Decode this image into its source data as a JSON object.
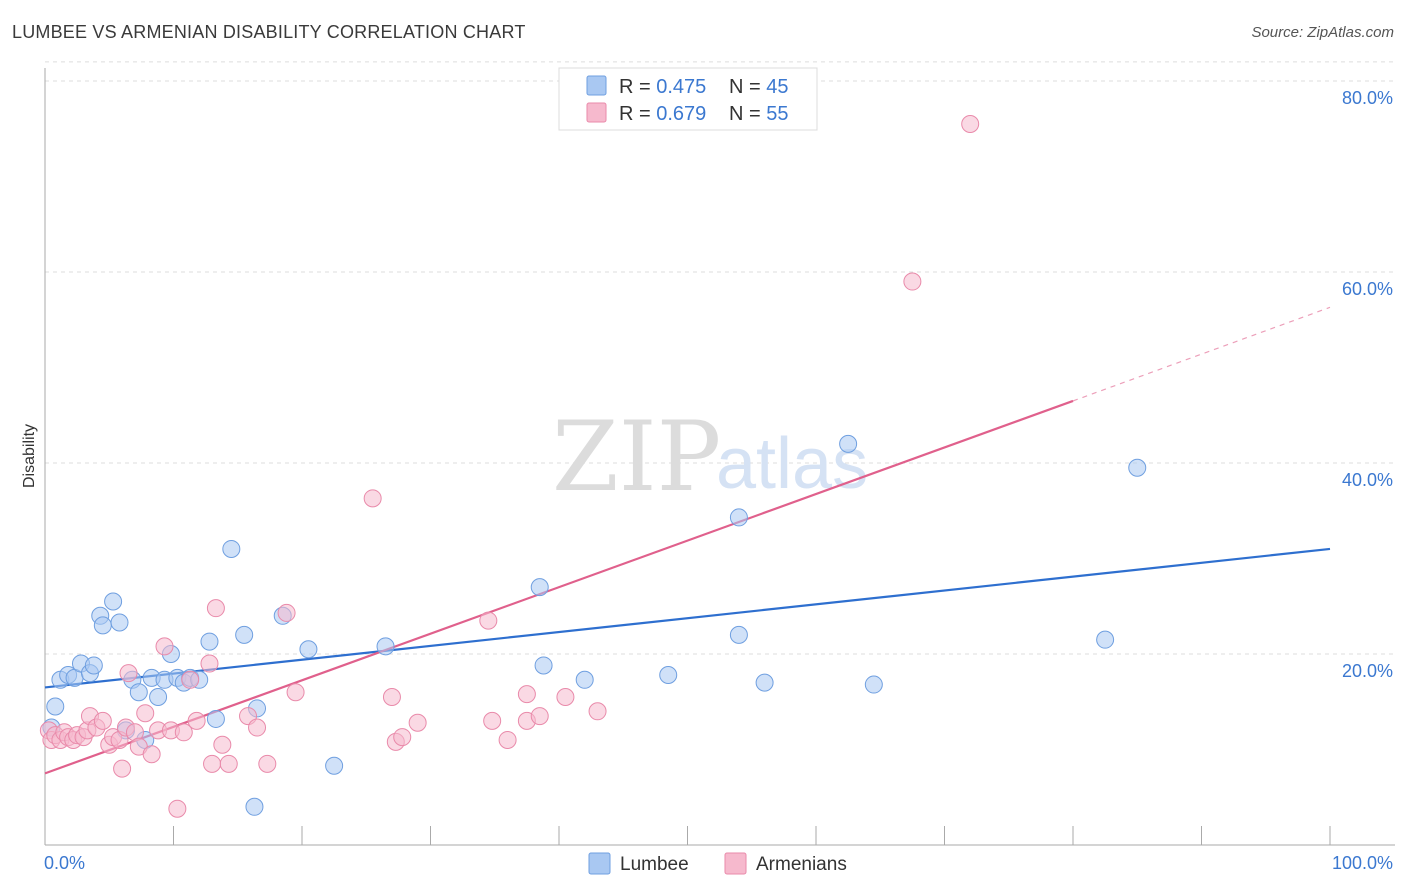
{
  "title": "LUMBEE VS ARMENIAN DISABILITY CORRELATION CHART",
  "source": "Source: ZipAtlas.com",
  "colors": {
    "lumbee_fill": "#a9c8f2",
    "lumbee_stroke": "#6f9fe0",
    "lumbee_line": "#2e6fcf",
    "armenian_fill": "#f6b9cd",
    "armenian_stroke": "#e98aaa",
    "armenian_line": "#e0608c",
    "axis_text": "#3b78d0",
    "grid": "#dddddd"
  },
  "legend": {
    "rows": [
      {
        "r_label": "R = ",
        "r_value": "0.475",
        "n_label": "N = ",
        "n_value": "45"
      },
      {
        "r_label": "R = ",
        "r_value": "0.679",
        "n_label": "N = ",
        "n_value": "55"
      }
    ]
  },
  "bottom_legend": [
    "Lumbee",
    "Armenians"
  ],
  "watermark": {
    "zip": "ZIP",
    "atlas": "atlas"
  },
  "chart_data": {
    "type": "scatter",
    "title": "LUMBEE VS ARMENIAN DISABILITY CORRELATION CHART",
    "xlabel": "",
    "ylabel": "Disability",
    "xlim": [
      0,
      100
    ],
    "ylim": [
      0,
      82
    ],
    "x_tick_labels": [
      "0.0%",
      "100.0%"
    ],
    "y_ticks": [
      20,
      40,
      60,
      80
    ],
    "y_tick_labels": [
      "20.0%",
      "40.0%",
      "60.0%",
      "80.0%"
    ],
    "grid": true,
    "series": [
      {
        "name": "Lumbee",
        "R": 0.475,
        "N": 45,
        "trend": {
          "x": [
            0,
            100
          ],
          "y": [
            16.5,
            31.0
          ]
        },
        "points": [
          [
            0.5,
            12.3
          ],
          [
            0.8,
            14.5
          ],
          [
            1.2,
            17.3
          ],
          [
            1.8,
            17.8
          ],
          [
            2.3,
            17.5
          ],
          [
            2.8,
            19.0
          ],
          [
            3.5,
            18.0
          ],
          [
            3.8,
            18.8
          ],
          [
            4.3,
            24.0
          ],
          [
            4.5,
            23.0
          ],
          [
            5.3,
            25.5
          ],
          [
            5.8,
            23.3
          ],
          [
            6.3,
            12.0
          ],
          [
            6.8,
            17.3
          ],
          [
            7.3,
            16.0
          ],
          [
            7.8,
            11.0
          ],
          [
            8.3,
            17.5
          ],
          [
            8.8,
            15.5
          ],
          [
            9.3,
            17.3
          ],
          [
            9.8,
            20.0
          ],
          [
            10.3,
            17.5
          ],
          [
            10.8,
            17.0
          ],
          [
            11.3,
            17.5
          ],
          [
            12.0,
            17.3
          ],
          [
            12.8,
            21.3
          ],
          [
            13.3,
            13.2
          ],
          [
            14.5,
            31.0
          ],
          [
            15.5,
            22.0
          ],
          [
            16.3,
            4.0
          ],
          [
            16.5,
            14.3
          ],
          [
            18.5,
            24.0
          ],
          [
            20.5,
            20.5
          ],
          [
            22.5,
            8.3
          ],
          [
            26.5,
            20.8
          ],
          [
            38.5,
            27.0
          ],
          [
            38.8,
            18.8
          ],
          [
            42.0,
            17.3
          ],
          [
            48.5,
            17.8
          ],
          [
            54.0,
            34.3
          ],
          [
            54.0,
            22.0
          ],
          [
            56.0,
            17.0
          ],
          [
            62.5,
            42.0
          ],
          [
            64.5,
            16.8
          ],
          [
            82.5,
            21.5
          ],
          [
            85.0,
            39.5
          ]
        ]
      },
      {
        "name": "Armenians",
        "R": 0.679,
        "N": 55,
        "trend": {
          "x": [
            0,
            80
          ],
          "y": [
            7.5,
            46.5
          ]
        },
        "trend_dashed": {
          "x": [
            80,
            100
          ],
          "y": [
            46.5,
            56.3
          ]
        },
        "points": [
          [
            0.3,
            12.0
          ],
          [
            0.5,
            11.0
          ],
          [
            0.8,
            11.5
          ],
          [
            1.2,
            11.0
          ],
          [
            1.5,
            11.8
          ],
          [
            1.8,
            11.3
          ],
          [
            2.2,
            11.0
          ],
          [
            2.5,
            11.5
          ],
          [
            3.0,
            11.3
          ],
          [
            3.3,
            12.0
          ],
          [
            3.5,
            13.5
          ],
          [
            4.0,
            12.3
          ],
          [
            4.5,
            13.0
          ],
          [
            5.0,
            10.5
          ],
          [
            5.3,
            11.3
          ],
          [
            5.8,
            11.0
          ],
          [
            6.0,
            8.0
          ],
          [
            6.3,
            12.3
          ],
          [
            6.5,
            18.0
          ],
          [
            7.0,
            11.8
          ],
          [
            7.3,
            10.3
          ],
          [
            7.8,
            13.8
          ],
          [
            8.3,
            9.5
          ],
          [
            8.8,
            12.0
          ],
          [
            9.3,
            20.8
          ],
          [
            9.8,
            12.0
          ],
          [
            10.3,
            3.8
          ],
          [
            10.8,
            11.8
          ],
          [
            11.3,
            17.3
          ],
          [
            11.8,
            13.0
          ],
          [
            12.8,
            19.0
          ],
          [
            13.0,
            8.5
          ],
          [
            13.3,
            24.8
          ],
          [
            13.8,
            10.5
          ],
          [
            14.3,
            8.5
          ],
          [
            15.8,
            13.5
          ],
          [
            16.5,
            12.3
          ],
          [
            17.3,
            8.5
          ],
          [
            18.8,
            24.3
          ],
          [
            19.5,
            16.0
          ],
          [
            25.5,
            36.3
          ],
          [
            27.0,
            15.5
          ],
          [
            27.3,
            10.8
          ],
          [
            27.8,
            11.3
          ],
          [
            29.0,
            12.8
          ],
          [
            34.5,
            23.5
          ],
          [
            34.8,
            13.0
          ],
          [
            36.0,
            11.0
          ],
          [
            37.5,
            15.8
          ],
          [
            37.5,
            13.0
          ],
          [
            38.5,
            13.5
          ],
          [
            40.5,
            15.5
          ],
          [
            43.0,
            14.0
          ],
          [
            67.5,
            59.0
          ],
          [
            72.0,
            75.5
          ]
        ]
      }
    ]
  }
}
